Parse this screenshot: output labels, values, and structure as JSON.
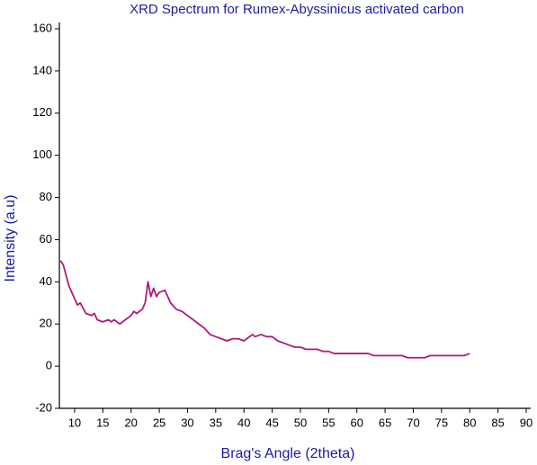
{
  "chart_data": {
    "type": "line",
    "title": "XRD Spectrum for Rumex-Abyssinicus activated carbon",
    "x_label": "Brag's Angle (2theta)",
    "y_label": "Intensity (a.u)",
    "x": [
      7.5,
      8,
      9,
      10,
      10.5,
      11,
      12,
      13,
      13.5,
      14,
      15,
      16,
      16.5,
      17,
      18,
      19,
      20,
      20.5,
      21,
      22,
      22.5,
      23,
      23.5,
      24,
      24.5,
      25,
      26,
      26.5,
      27,
      28,
      29,
      30,
      31,
      32,
      33,
      34,
      35,
      36,
      37,
      38,
      39,
      40,
      41,
      41.5,
      42,
      43,
      44,
      45,
      46,
      47,
      48,
      49,
      50,
      51,
      52,
      53,
      54,
      55,
      56,
      57,
      58,
      59,
      60,
      61,
      62,
      63,
      64,
      65,
      66,
      67,
      68,
      69,
      70,
      71,
      72,
      73,
      74,
      75,
      76,
      77,
      78,
      79,
      80
    ],
    "series": [
      {
        "name": "XRD",
        "color": "#b01a7c",
        "values": [
          50,
          48,
          38,
          32,
          29,
          30,
          25,
          24,
          25,
          22,
          21,
          22,
          21,
          22,
          20,
          22,
          24,
          26,
          25,
          27,
          30,
          40,
          33,
          37,
          33,
          35,
          36,
          33,
          30,
          27,
          26,
          24,
          22,
          20,
          18,
          15,
          14,
          13,
          12,
          13,
          13,
          12,
          14,
          15,
          14,
          15,
          14,
          14,
          12,
          11,
          10,
          9,
          9,
          8,
          8,
          8,
          7,
          7,
          6,
          6,
          6,
          6,
          6,
          6,
          6,
          5,
          5,
          5,
          5,
          5,
          5,
          4,
          4,
          4,
          4,
          5,
          5,
          5,
          5,
          5,
          5,
          5,
          6
        ]
      }
    ],
    "xlim": [
      7.3,
      90.8
    ],
    "ylim": [
      -20,
      160
    ],
    "xticks": [
      10,
      15,
      20,
      25,
      30,
      35,
      40,
      45,
      50,
      55,
      60,
      65,
      70,
      75,
      80,
      85,
      90
    ],
    "yticks": [
      -20,
      0,
      20,
      40,
      60,
      80,
      100,
      120,
      140,
      160
    ]
  }
}
